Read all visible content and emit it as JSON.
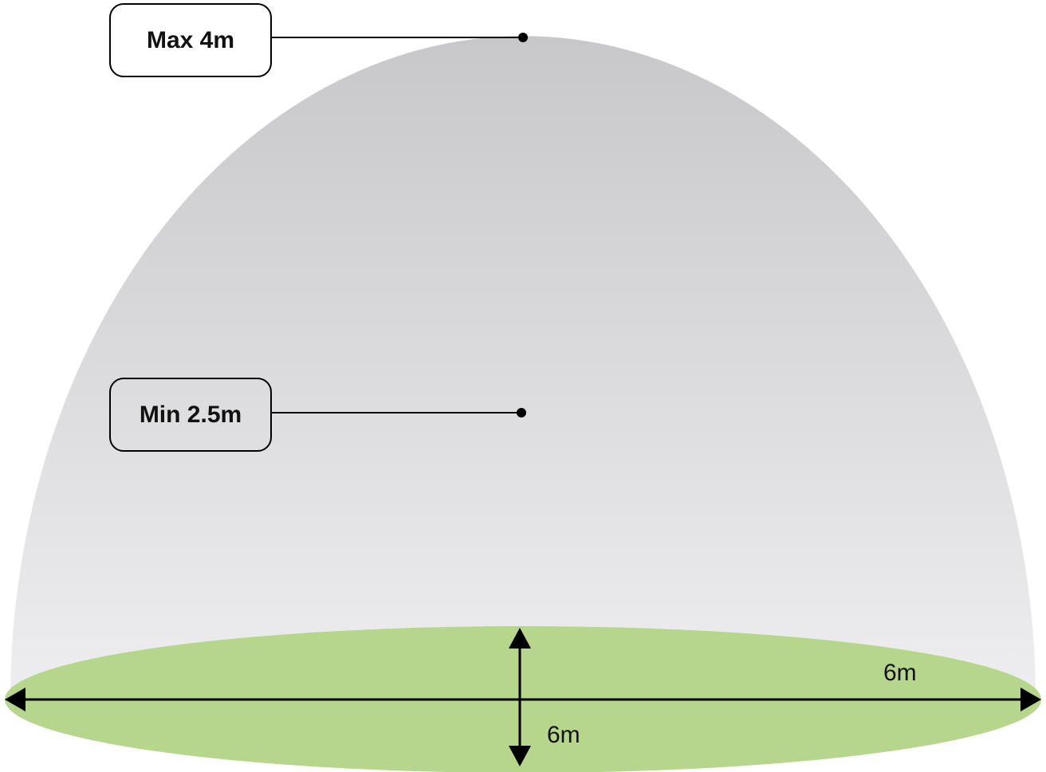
{
  "callouts": {
    "max_height": "Max 4m",
    "min_height": "Min 2.5m"
  },
  "dimensions": {
    "horizontal_diameter": "6m",
    "vertical_diameter": "6m"
  },
  "colors": {
    "dome_top": "#c8c7c9",
    "dome_bottom": "#eeeef0",
    "floor": "#b6d68b",
    "lines": "#000000"
  }
}
